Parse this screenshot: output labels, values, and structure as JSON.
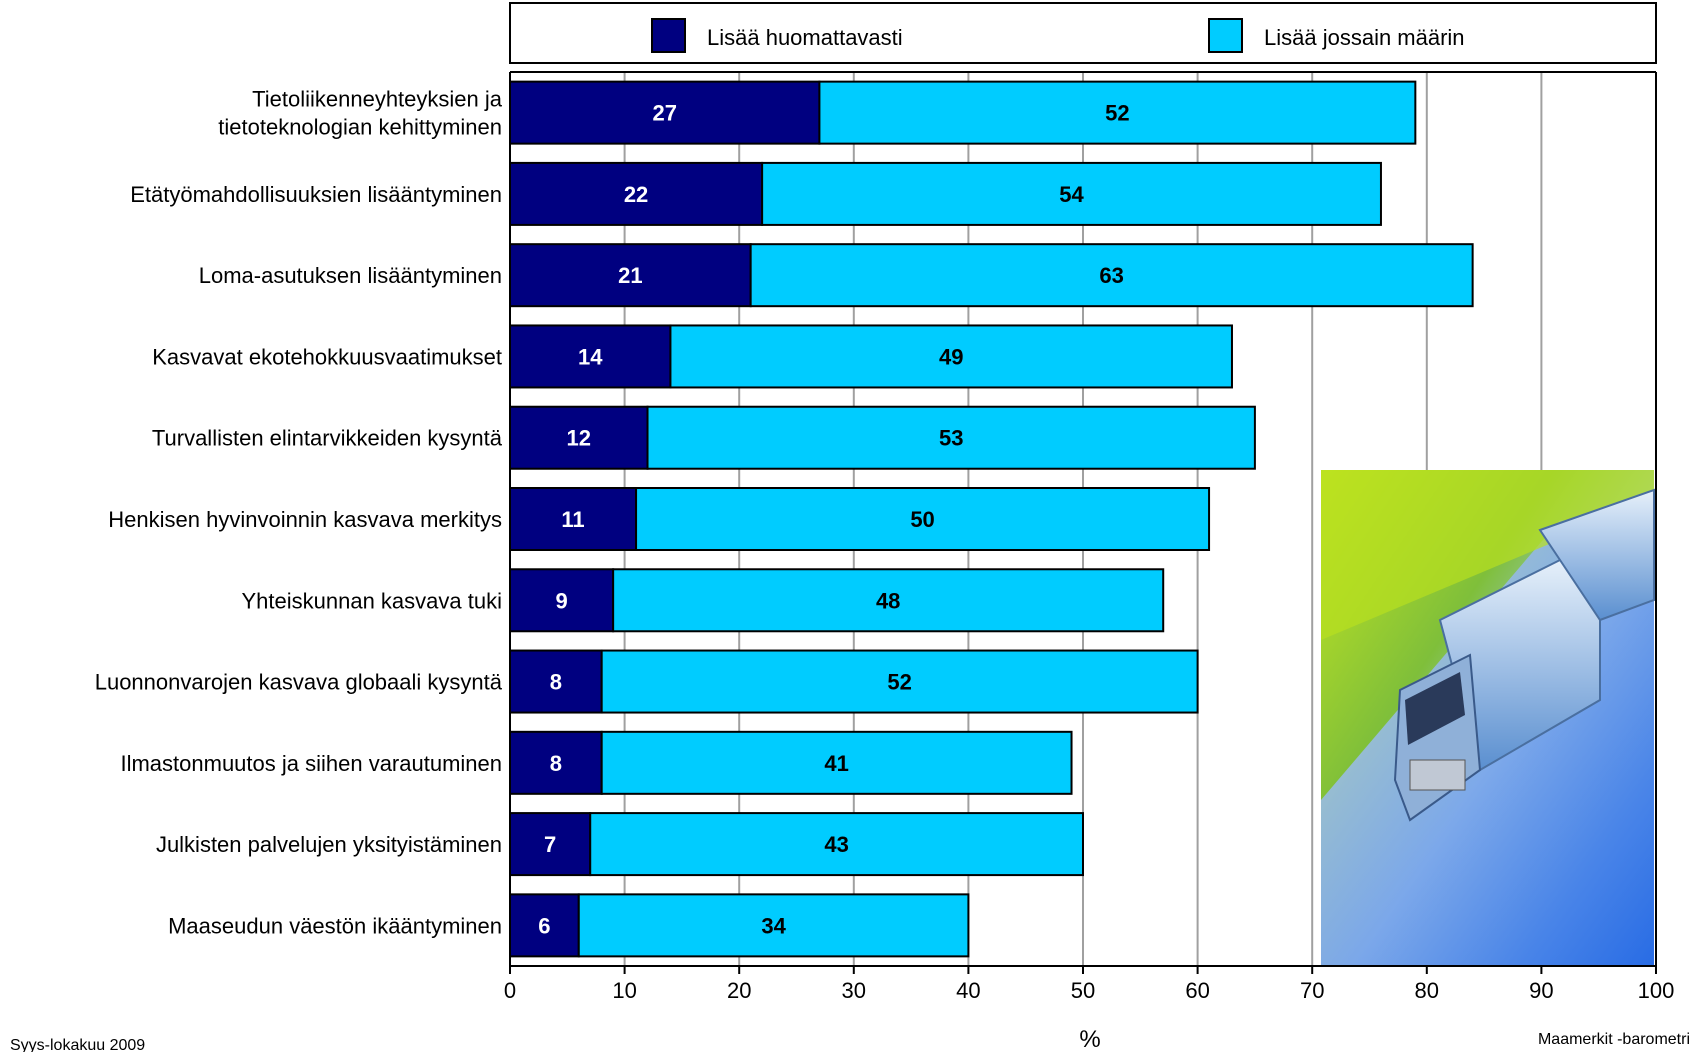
{
  "chart_data": {
    "type": "bar",
    "orientation": "horizontal",
    "stacked": true,
    "categories": [
      [
        "Tietoliikenneyhteyksien ja",
        "tietoteknologian kehittyminen"
      ],
      [
        "Etätyömahdollisuuksien lisääntyminen"
      ],
      [
        "Loma-asutuksen lisääntyminen"
      ],
      [
        "Kasvavat ekotehokkuusvaatimukset"
      ],
      [
        "Turvallisten elintarvikkeiden kysyntä"
      ],
      [
        "Henkisen hyvinvoinnin kasvava merkitys"
      ],
      [
        "Yhteiskunnan kasvava tuki"
      ],
      [
        "Luonnonvarojen kasvava globaali kysyntä"
      ],
      [
        "Ilmastonmuutos ja siihen varautuminen"
      ],
      [
        "Julkisten palvelujen yksityistäminen"
      ],
      [
        "Maaseudun väestön ikääntyminen"
      ]
    ],
    "series": [
      {
        "name": "Lisää huomattavasti",
        "color": "#000080",
        "label_color": "#ffffff",
        "values": [
          27,
          22,
          21,
          14,
          12,
          11,
          9,
          8,
          8,
          7,
          6
        ]
      },
      {
        "name": "Lisää jossain määrin",
        "color": "#00ccff",
        "label_color": "#000000",
        "values": [
          52,
          54,
          63,
          49,
          53,
          50,
          48,
          52,
          41,
          43,
          34
        ]
      }
    ],
    "xlim": [
      0,
      100
    ],
    "xticks": [
      0,
      10,
      20,
      30,
      40,
      50,
      60,
      70,
      80,
      90,
      100
    ],
    "xlabel": "%",
    "grid": true,
    "legend_position": "top"
  },
  "footer": {
    "left": "Syys-lokakuu 2009",
    "right": "Maamerkit -barometri"
  }
}
